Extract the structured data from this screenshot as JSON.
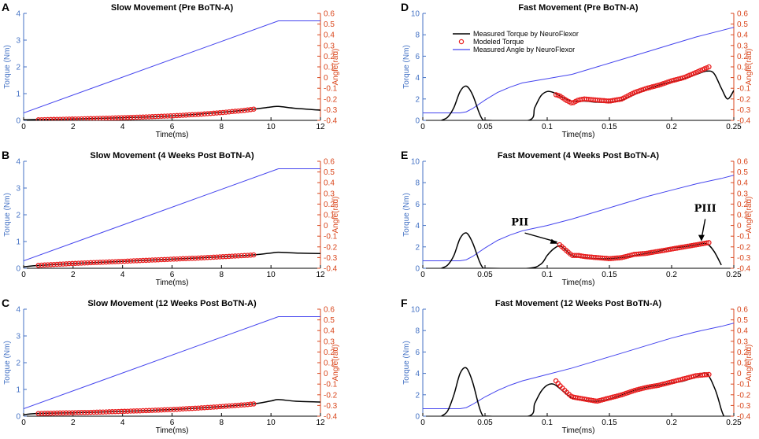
{
  "colors": {
    "torque_axis": "#4472c4",
    "angle_axis": "#d9461c",
    "measured_torque": "#000000",
    "modeled_torque": "#e81e1e",
    "measured_angle": "#4444ee"
  },
  "legend": {
    "measured_torque": "Measured Torque by NeuroFlexor",
    "modeled_torque": "Modeled Torque",
    "measured_angle": "Measured Angle by NeuroFlexor"
  },
  "annotations": {
    "pii": "PII",
    "piii": "PIII"
  },
  "chart_data": [
    {
      "panel": "A",
      "type": "line",
      "title": "Slow Movement (Pre BoTN-A)",
      "xlabel": "Time(ms)",
      "ylabel_left": "Torque (Nm)",
      "ylabel_right": "Angle(rad)",
      "xlim": [
        0,
        12
      ],
      "ylim_left": [
        0,
        4
      ],
      "ylim_right": [
        -0.4,
        0.6
      ],
      "xticks": [
        "0",
        "2",
        "4",
        "6",
        "8",
        "10",
        "12"
      ],
      "yticks_left": [
        "0",
        "1",
        "2",
        "3",
        "4"
      ],
      "yticks_right": [
        "-0.4",
        "-0.3",
        "-0.2",
        "-0.1",
        "0",
        "0.1",
        "0.2",
        "0.3",
        "0.4",
        "0.5",
        "0.6"
      ],
      "series": [
        {
          "name": "Measured Torque by NeuroFlexor",
          "axis": "left",
          "x": [
            0,
            0.5,
            2,
            4,
            6,
            8,
            9.3,
            10,
            10.3,
            11,
            12
          ],
          "y": [
            0.02,
            0.03,
            0.05,
            0.1,
            0.17,
            0.3,
            0.42,
            0.5,
            0.52,
            0.45,
            0.38
          ]
        },
        {
          "name": "Modeled Torque",
          "axis": "left",
          "x": [
            0.6,
            1,
            2,
            3,
            4,
            5,
            6,
            7,
            8,
            9,
            9.3
          ],
          "y": [
            0.02,
            0.03,
            0.05,
            0.07,
            0.1,
            0.13,
            0.17,
            0.22,
            0.29,
            0.38,
            0.42
          ]
        },
        {
          "name": "Measured Angle by NeuroFlexor",
          "axis": "right",
          "x": [
            0,
            10.3,
            12
          ],
          "y": [
            -0.33,
            0.53,
            0.53
          ]
        }
      ]
    },
    {
      "panel": "B",
      "type": "line",
      "title": "Slow Movement (4 Weeks Post BoTN-A)",
      "xlabel": "Time(ms)",
      "ylabel_left": "Torque (Nm)",
      "ylabel_right": "Angle(rad)",
      "xlim": [
        0,
        12
      ],
      "ylim_left": [
        0,
        4
      ],
      "ylim_right": [
        -0.4,
        0.6
      ],
      "xticks": [
        "0",
        "2",
        "4",
        "6",
        "8",
        "10",
        "12"
      ],
      "yticks_left": [
        "0",
        "1",
        "2",
        "3",
        "4"
      ],
      "yticks_right": [
        "-0.4",
        "-0.3",
        "-0.2",
        "-0.1",
        "0",
        "0.1",
        "0.2",
        "0.3",
        "0.4",
        "0.5",
        "0.6"
      ],
      "series": [
        {
          "name": "Measured Torque by NeuroFlexor",
          "axis": "left",
          "x": [
            0,
            0.5,
            2,
            4,
            6,
            8,
            9.3,
            10,
            10.3,
            11,
            12
          ],
          "y": [
            0.05,
            0.1,
            0.18,
            0.26,
            0.34,
            0.43,
            0.5,
            0.57,
            0.6,
            0.57,
            0.55
          ]
        },
        {
          "name": "Modeled Torque",
          "axis": "left",
          "x": [
            0.6,
            1,
            2,
            3,
            4,
            5,
            6,
            7,
            8,
            9,
            9.3
          ],
          "y": [
            0.11,
            0.13,
            0.18,
            0.22,
            0.26,
            0.3,
            0.34,
            0.38,
            0.43,
            0.48,
            0.5
          ]
        },
        {
          "name": "Measured Angle by NeuroFlexor",
          "axis": "right",
          "x": [
            0,
            10.3,
            12
          ],
          "y": [
            -0.33,
            0.53,
            0.53
          ]
        }
      ]
    },
    {
      "panel": "C",
      "type": "line",
      "title": "Slow Movement (12 Weeks Post BoTN-A)",
      "xlabel": "Time(ms)",
      "ylabel_left": "Torque (Nm)",
      "ylabel_right": "Angle(rad)",
      "xlim": [
        0,
        12
      ],
      "ylim_left": [
        0,
        4
      ],
      "ylim_right": [
        -0.4,
        0.6
      ],
      "xticks": [
        "0",
        "2",
        "4",
        "6",
        "8",
        "10",
        "12"
      ],
      "yticks_left": [
        "0",
        "1",
        "2",
        "3",
        "4"
      ],
      "yticks_right": [
        "-0.4",
        "-0.3",
        "-0.2",
        "-0.1",
        "0",
        "0.1",
        "0.2",
        "0.3",
        "0.4",
        "0.5",
        "0.6"
      ],
      "series": [
        {
          "name": "Measured Torque by NeuroFlexor",
          "axis": "left",
          "x": [
            0,
            0.5,
            2,
            4,
            6,
            8,
            9.3,
            10,
            10.3,
            11,
            12
          ],
          "y": [
            0.05,
            0.1,
            0.13,
            0.18,
            0.25,
            0.36,
            0.46,
            0.57,
            0.62,
            0.56,
            0.53
          ]
        },
        {
          "name": "Modeled Torque",
          "axis": "left",
          "x": [
            0.6,
            1,
            2,
            3,
            4,
            5,
            6,
            7,
            8,
            9,
            9.3
          ],
          "y": [
            0.1,
            0.11,
            0.13,
            0.15,
            0.18,
            0.21,
            0.25,
            0.3,
            0.36,
            0.43,
            0.46
          ]
        },
        {
          "name": "Measured Angle by NeuroFlexor",
          "axis": "right",
          "x": [
            0,
            10.3,
            12
          ],
          "y": [
            -0.33,
            0.53,
            0.53
          ]
        }
      ]
    },
    {
      "panel": "D",
      "type": "line",
      "title": "Fast Movement (Pre BoTN-A)",
      "xlabel": "Time(ms)",
      "ylabel_left": "Torque (Nm)",
      "ylabel_right": "Angle(rad)",
      "xlim": [
        0,
        0.25
      ],
      "ylim_left": [
        0,
        10
      ],
      "ylim_right": [
        -0.4,
        0.6
      ],
      "xticks": [
        "0",
        "0.05",
        "0.1",
        "0.15",
        "0.2",
        "0.25"
      ],
      "yticks_left": [
        "0",
        "2",
        "4",
        "6",
        "8",
        "10"
      ],
      "yticks_right": [
        "-0.4",
        "-0.3",
        "-0.2",
        "-0.1",
        "0",
        "0.1",
        "0.2",
        "0.3",
        "0.4",
        "0.5",
        "0.6"
      ],
      "series": [
        {
          "name": "Measured Torque by NeuroFlexor",
          "axis": "left",
          "x": [
            0.015,
            0.02,
            0.025,
            0.03,
            0.035,
            0.04,
            0.045,
            0.048,
            0.052,
            0.085,
            0.09,
            0.095,
            0.1,
            0.105,
            0.11,
            0.115,
            0.12,
            0.13,
            0.14,
            0.15,
            0.16,
            0.17,
            0.18,
            0.19,
            0.2,
            0.21,
            0.22,
            0.228,
            0.234,
            0.24,
            0.245,
            0.25
          ],
          "y": [
            0,
            0.3,
            1.2,
            2.7,
            3.2,
            2.4,
            0.8,
            0.1,
            0,
            0,
            1.2,
            2.3,
            2.7,
            2.6,
            2.3,
            2.0,
            1.8,
            1.8,
            1.7,
            1.7,
            1.9,
            2.4,
            2.9,
            3.3,
            3.6,
            3.9,
            4.3,
            4.6,
            4.4,
            3.0,
            2.0,
            2.8
          ]
        },
        {
          "name": "Modeled Torque",
          "axis": "left",
          "x": [
            0.107,
            0.11,
            0.115,
            0.12,
            0.125,
            0.13,
            0.14,
            0.15,
            0.16,
            0.17,
            0.18,
            0.19,
            0.2,
            0.21,
            0.22,
            0.23
          ],
          "y": [
            2.4,
            2.3,
            1.9,
            1.6,
            1.9,
            2.0,
            1.9,
            1.8,
            2.0,
            2.6,
            3.0,
            3.3,
            3.7,
            4.0,
            4.5,
            5.0
          ]
        },
        {
          "name": "Measured Angle by NeuroFlexor",
          "axis": "right",
          "x": [
            0,
            0.03,
            0.035,
            0.04,
            0.05,
            0.06,
            0.07,
            0.08,
            0.1,
            0.12,
            0.14,
            0.16,
            0.18,
            0.2,
            0.22,
            0.24,
            0.25
          ],
          "y": [
            -0.33,
            -0.33,
            -0.32,
            -0.29,
            -0.21,
            -0.14,
            -0.09,
            -0.05,
            -0.01,
            0.03,
            0.1,
            0.17,
            0.24,
            0.31,
            0.38,
            0.44,
            0.47
          ]
        }
      ]
    },
    {
      "panel": "E",
      "type": "line",
      "title": "Fast Movement (4 Weeks Post BoTN-A)",
      "xlabel": "Time(ms)",
      "ylabel_left": "Torque (Nm)",
      "ylabel_right": "Angle(rad)",
      "xlim": [
        0,
        0.25
      ],
      "ylim_left": [
        0,
        10
      ],
      "ylim_right": [
        -0.4,
        0.6
      ],
      "xticks": [
        "0",
        "0.05",
        "0.1",
        "0.15",
        "0.2",
        "0.25"
      ],
      "yticks_left": [
        "0",
        "2",
        "4",
        "6",
        "8",
        "10"
      ],
      "yticks_right": [
        "-0.4",
        "-0.3",
        "-0.2",
        "-0.1",
        "0",
        "0.1",
        "0.2",
        "0.3",
        "0.4",
        "0.5",
        "0.6"
      ],
      "series": [
        {
          "name": "Measured Torque by NeuroFlexor",
          "axis": "left",
          "x": [
            0.015,
            0.02,
            0.025,
            0.03,
            0.035,
            0.04,
            0.045,
            0.048,
            0.052,
            0.085,
            0.095,
            0.1,
            0.105,
            0.11,
            0.115,
            0.12,
            0.13,
            0.14,
            0.15,
            0.16,
            0.17,
            0.18,
            0.19,
            0.2,
            0.21,
            0.22,
            0.228,
            0.234,
            0.24
          ],
          "y": [
            0,
            0.3,
            1.2,
            2.8,
            3.3,
            2.4,
            0.8,
            0.1,
            0,
            0,
            0.4,
            1.2,
            1.8,
            2.1,
            1.7,
            1.2,
            1.0,
            0.9,
            0.9,
            1.0,
            1.2,
            1.4,
            1.6,
            1.9,
            2.0,
            2.2,
            2.3,
            1.6,
            0.3
          ]
        },
        {
          "name": "Modeled Torque",
          "axis": "left",
          "x": [
            0.11,
            0.115,
            0.12,
            0.125,
            0.13,
            0.14,
            0.15,
            0.16,
            0.17,
            0.18,
            0.19,
            0.2,
            0.21,
            0.22,
            0.23
          ],
          "y": [
            2.2,
            1.7,
            1.2,
            1.2,
            1.1,
            1.0,
            0.9,
            1.0,
            1.3,
            1.4,
            1.6,
            1.8,
            2.0,
            2.2,
            2.4
          ]
        },
        {
          "name": "Measured Angle by NeuroFlexor",
          "axis": "right",
          "x": [
            0,
            0.03,
            0.035,
            0.04,
            0.05,
            0.06,
            0.07,
            0.08,
            0.1,
            0.12,
            0.14,
            0.16,
            0.18,
            0.2,
            0.22,
            0.24,
            0.25
          ],
          "y": [
            -0.33,
            -0.33,
            -0.32,
            -0.29,
            -0.21,
            -0.14,
            -0.09,
            -0.05,
            0.0,
            0.06,
            0.13,
            0.2,
            0.27,
            0.33,
            0.39,
            0.44,
            0.47
          ]
        }
      ]
    },
    {
      "panel": "F",
      "type": "line",
      "title": "Fast Movement (12 Weeks Post BoTN-A)",
      "xlabel": "Time(ms)",
      "ylabel_left": "Torque (Nm)",
      "ylabel_right": "Angle(rad)",
      "xlim": [
        0,
        0.25
      ],
      "ylim_left": [
        0,
        10
      ],
      "ylim_right": [
        -0.4,
        0.6
      ],
      "xticks": [
        "0",
        "0.05",
        "0.1",
        "0.15",
        "0.2",
        "0.25"
      ],
      "yticks_left": [
        "0",
        "2",
        "4",
        "6",
        "8",
        "10"
      ],
      "yticks_right": [
        "-0.4",
        "-0.3",
        "-0.2",
        "-0.1",
        "0",
        "0.1",
        "0.2",
        "0.3",
        "0.4",
        "0.5",
        "0.6"
      ],
      "series": [
        {
          "name": "Measured Torque by NeuroFlexor",
          "axis": "left",
          "x": [
            0.015,
            0.02,
            0.025,
            0.03,
            0.035,
            0.04,
            0.045,
            0.048,
            0.052,
            0.085,
            0.09,
            0.095,
            0.1,
            0.105,
            0.11,
            0.115,
            0.12,
            0.13,
            0.14,
            0.15,
            0.16,
            0.17,
            0.18,
            0.19,
            0.2,
            0.21,
            0.22,
            0.228,
            0.235,
            0.24,
            0.242
          ],
          "y": [
            0,
            0.5,
            2.0,
            4.0,
            4.5,
            3.2,
            1.0,
            0.1,
            0,
            0,
            1.2,
            2.3,
            2.9,
            3.0,
            2.6,
            2.1,
            1.7,
            1.5,
            1.4,
            1.6,
            2.0,
            2.4,
            2.7,
            2.9,
            3.1,
            3.3,
            3.7,
            4.0,
            2.5,
            0.6,
            0
          ]
        },
        {
          "name": "Modeled Torque",
          "axis": "left",
          "x": [
            0.107,
            0.11,
            0.115,
            0.12,
            0.125,
            0.13,
            0.14,
            0.15,
            0.16,
            0.17,
            0.18,
            0.19,
            0.2,
            0.21,
            0.22,
            0.23
          ],
          "y": [
            3.3,
            2.9,
            2.3,
            1.8,
            1.7,
            1.6,
            1.4,
            1.7,
            2.0,
            2.4,
            2.7,
            2.9,
            3.2,
            3.5,
            3.8,
            3.9
          ]
        },
        {
          "name": "Measured Angle by NeuroFlexor",
          "axis": "right",
          "x": [
            0,
            0.03,
            0.035,
            0.04,
            0.05,
            0.06,
            0.07,
            0.08,
            0.1,
            0.12,
            0.14,
            0.16,
            0.18,
            0.2,
            0.22,
            0.24,
            0.25
          ],
          "y": [
            -0.33,
            -0.33,
            -0.32,
            -0.29,
            -0.22,
            -0.16,
            -0.11,
            -0.07,
            -0.01,
            0.05,
            0.12,
            0.19,
            0.26,
            0.33,
            0.39,
            0.44,
            0.47
          ]
        }
      ]
    }
  ]
}
